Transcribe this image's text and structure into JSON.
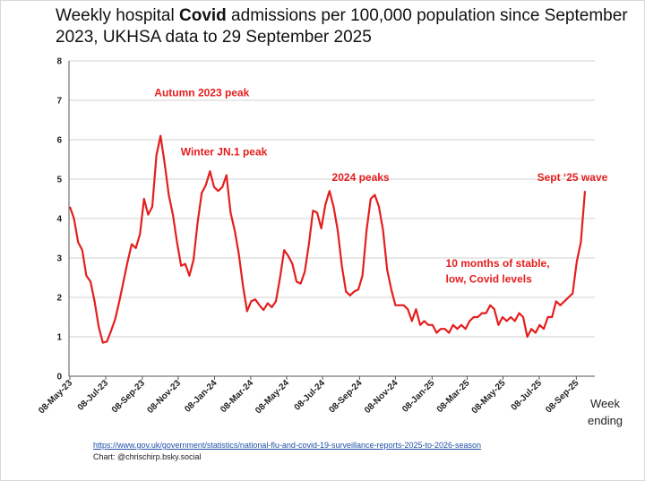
{
  "title_pre": "Weekly hospital ",
  "title_bold": "Covid",
  "title_post": " admissions per 100,000 population since September 2023, UKHSA data to 29 September 2025",
  "source_url": "https://www.gov.uk/government/statistics/national-flu-and-covid-19-surveillance-reports-2025-to-2026-season",
  "credit": "Chart: @chrischirp.bsky.social",
  "week_label_line1": "Week",
  "week_label_line2": "ending",
  "chart_data": {
    "type": "line",
    "title": "Weekly hospital Covid admissions per 100,000 population since September 2023, UKHSA data to 29 September 2025",
    "xlabel": "Week ending",
    "ylabel": "",
    "ylim": [
      0,
      8
    ],
    "yticks": [
      0,
      1,
      2,
      3,
      4,
      5,
      6,
      7,
      8
    ],
    "grid": true,
    "line_color": "#e51e1e",
    "start_date": "2023-05-08",
    "xtick_labels": [
      "08-May-23",
      "08-Jul-23",
      "08-Sep-23",
      "08-Nov-23",
      "08-Jan-24",
      "08-Mar-24",
      "08-May-24",
      "08-Jul-24",
      "08-Sep-24",
      "08-Nov-24",
      "08-Jan-25",
      "08-Mar-25",
      "08-May-25",
      "08-Jul-25",
      "08-Sep-25"
    ],
    "xtick_weeks": [
      0,
      8.7,
      17.6,
      26.3,
      35.1,
      43.9,
      52.6,
      61.3,
      70.3,
      79,
      87.9,
      96.4,
      105.1,
      113.9,
      122.9
    ],
    "values": [
      4.3,
      4.0,
      3.4,
      3.2,
      2.55,
      2.4,
      1.9,
      1.25,
      0.85,
      0.88,
      1.15,
      1.45,
      1.9,
      2.4,
      2.9,
      3.35,
      3.25,
      3.6,
      4.5,
      4.1,
      4.3,
      5.6,
      6.1,
      5.4,
      4.6,
      4.1,
      3.4,
      2.8,
      2.85,
      2.55,
      2.95,
      3.9,
      4.65,
      4.85,
      5.2,
      4.8,
      4.7,
      4.8,
      5.1,
      4.15,
      3.7,
      3.1,
      2.3,
      1.65,
      1.9,
      1.95,
      1.8,
      1.68,
      1.85,
      1.75,
      1.9,
      2.5,
      3.2,
      3.05,
      2.85,
      2.4,
      2.35,
      2.65,
      3.35,
      4.2,
      4.15,
      3.75,
      4.35,
      4.7,
      4.3,
      3.7,
      2.8,
      2.15,
      2.05,
      2.15,
      2.2,
      2.55,
      3.7,
      4.5,
      4.6,
      4.3,
      3.7,
      2.7,
      2.2,
      1.8,
      1.8,
      1.8,
      1.7,
      1.4,
      1.7,
      1.3,
      1.4,
      1.3,
      1.3,
      1.1,
      1.2,
      1.2,
      1.1,
      1.3,
      1.2,
      1.3,
      1.2,
      1.4,
      1.5,
      1.5,
      1.6,
      1.6,
      1.8,
      1.7,
      1.3,
      1.5,
      1.4,
      1.5,
      1.4,
      1.6,
      1.5,
      1.0,
      1.2,
      1.1,
      1.3,
      1.2,
      1.5,
      1.5,
      1.9,
      1.8,
      1.9,
      2.0,
      2.1,
      2.9,
      3.4,
      4.7
    ],
    "annotations": [
      {
        "text": "Autumn 2023 peak",
        "week": 20.5,
        "y": 7.1,
        "anchor": "start"
      },
      {
        "text": "Winter JN.1 peak",
        "week": 26.9,
        "y": 5.6,
        "anchor": "start"
      },
      {
        "text": "2024 peaks",
        "week": 63.6,
        "y": 4.95,
        "anchor": "start"
      },
      {
        "text": "Sept ‘25 wave",
        "week": 130.5,
        "y": 4.95,
        "anchor": "end"
      },
      {
        "text": "10 months of stable,",
        "week": 91.2,
        "y": 2.77,
        "anchor": "start"
      },
      {
        "text": "low, Covid levels",
        "week": 91.2,
        "y": 2.37,
        "anchor": "start"
      }
    ]
  }
}
